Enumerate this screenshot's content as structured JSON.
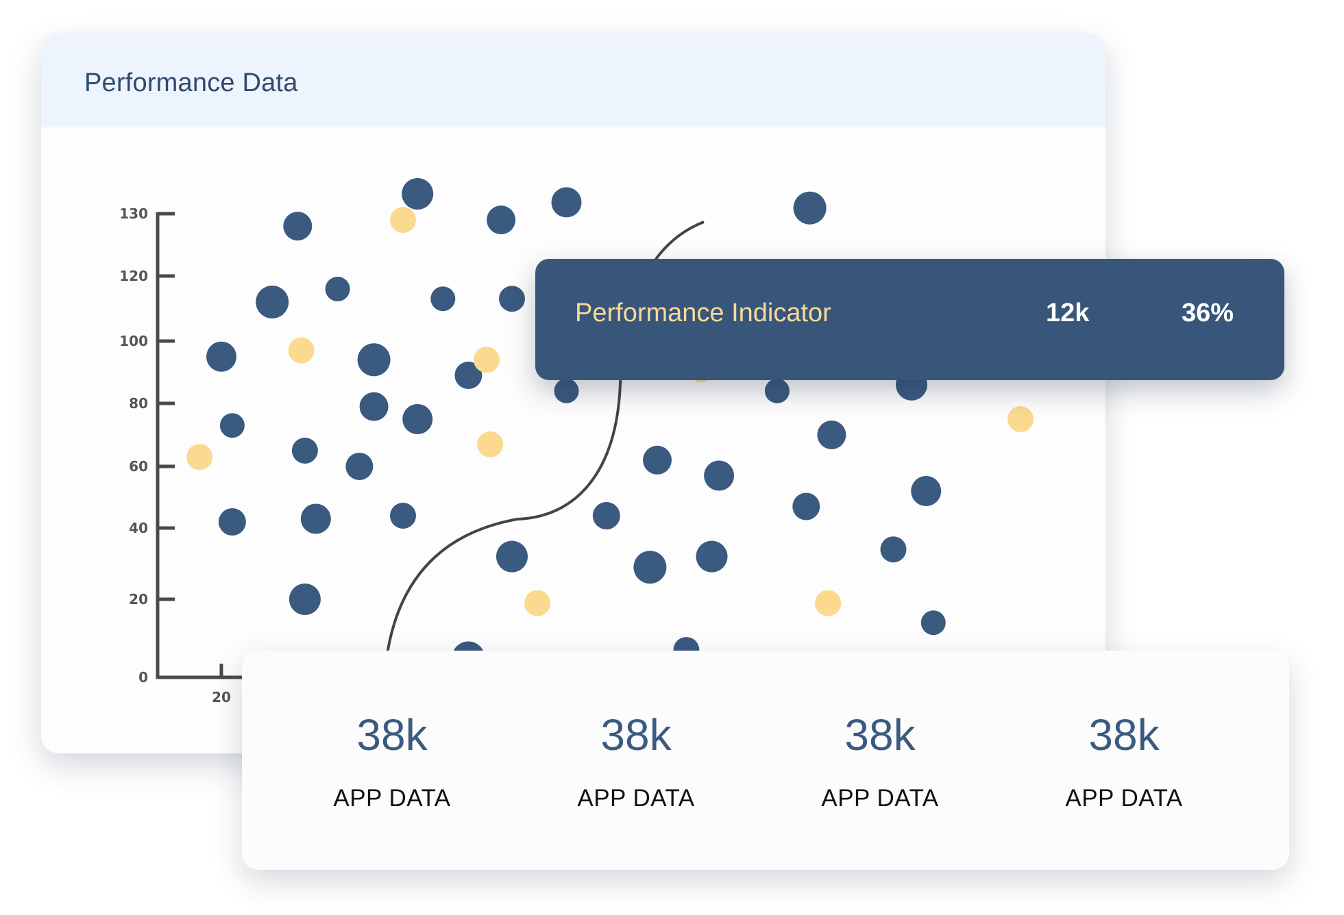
{
  "card_title": "Performance Data",
  "indicator": {
    "label": "Performance Indicator",
    "value_1": "12k",
    "value_2": "36%"
  },
  "stats": [
    {
      "value": "38k",
      "label": "APP DATA"
    },
    {
      "value": "38k",
      "label": "APP DATA"
    },
    {
      "value": "38k",
      "label": "APP DATA"
    },
    {
      "value": "38k",
      "label": "APP DATA"
    }
  ],
  "colors": {
    "navy": "#3a5a80",
    "yellow": "#fbd98f",
    "header_bg": "#eef4fd",
    "indicator_bg": "#385679",
    "indicator_label": "#f7d99a"
  },
  "chart_data": {
    "type": "scatter",
    "title": "",
    "xlabel": "",
    "ylabel": "",
    "y_ticks": [
      "0",
      "20",
      "40",
      "60",
      "80",
      "100",
      "120",
      "130"
    ],
    "x_ticks": [
      "20"
    ],
    "series": [
      {
        "color": "#3a5a80",
        "points": [
          {
            "x": 20,
            "y": 95
          },
          {
            "x": 23,
            "y": 73
          },
          {
            "x": 23,
            "y": 42
          },
          {
            "x": 34,
            "y": 112
          },
          {
            "x": 41,
            "y": 128
          },
          {
            "x": 43,
            "y": 65
          },
          {
            "x": 43,
            "y": 20
          },
          {
            "x": 46,
            "y": 43
          },
          {
            "x": 52,
            "y": 116
          },
          {
            "x": 58,
            "y": 60
          },
          {
            "x": 62,
            "y": 94
          },
          {
            "x": 62,
            "y": 79
          },
          {
            "x": 70,
            "y": 44
          },
          {
            "x": 74,
            "y": 151
          },
          {
            "x": 74,
            "y": 75
          },
          {
            "x": 81,
            "y": 113
          },
          {
            "x": 88,
            "y": 89
          },
          {
            "x": 88,
            "y": 5
          },
          {
            "x": 97,
            "y": 129
          },
          {
            "x": 100,
            "y": 113
          },
          {
            "x": 100,
            "y": 32
          },
          {
            "x": 115,
            "y": 142
          },
          {
            "x": 115,
            "y": 84
          },
          {
            "x": 126,
            "y": 44
          },
          {
            "x": 138,
            "y": 29
          },
          {
            "x": 140,
            "y": 62
          },
          {
            "x": 148,
            "y": 7
          },
          {
            "x": 155,
            "y": 32
          },
          {
            "x": 157,
            "y": 57
          },
          {
            "x": 173,
            "y": 84
          },
          {
            "x": 181,
            "y": 47
          },
          {
            "x": 182,
            "y": 136
          },
          {
            "x": 188,
            "y": 70
          },
          {
            "x": 205,
            "y": 34
          },
          {
            "x": 210,
            "y": 86
          },
          {
            "x": 214,
            "y": 52
          },
          {
            "x": 216,
            "y": 14
          }
        ]
      },
      {
        "color": "#fbd98f",
        "points": [
          {
            "x": 14,
            "y": 63
          },
          {
            "x": 42,
            "y": 97
          },
          {
            "x": 70,
            "y": 129
          },
          {
            "x": 93,
            "y": 94
          },
          {
            "x": 94,
            "y": 67
          },
          {
            "x": 107,
            "y": 19
          },
          {
            "x": 152,
            "y": 91
          },
          {
            "x": 187,
            "y": 19
          },
          {
            "x": 240,
            "y": 75
          }
        ]
      }
    ]
  }
}
